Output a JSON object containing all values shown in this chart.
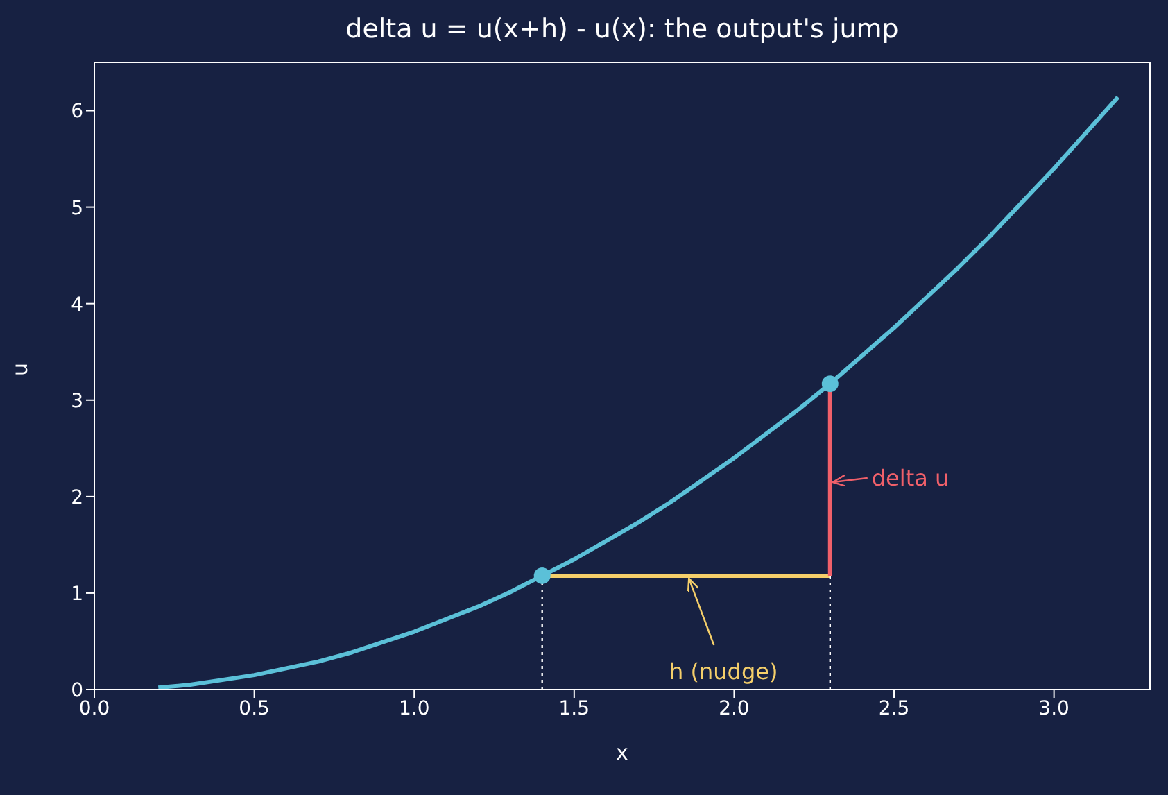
{
  "chart_data": {
    "type": "line",
    "title": "delta u = u(x+h) - u(x): the output's jump",
    "xlabel": "x",
    "ylabel": "u",
    "xlim": [
      0,
      3.3
    ],
    "xticks": [
      {
        "value": 0,
        "label": "0.0"
      },
      {
        "value": 0.5,
        "label": "0.5"
      },
      {
        "value": 1,
        "label": "1.0"
      },
      {
        "value": 1.5,
        "label": "1.5"
      },
      {
        "value": 2,
        "label": "2.0"
      },
      {
        "value": 2.5,
        "label": "2.5"
      },
      {
        "value": 3,
        "label": "3.0"
      }
    ],
    "ylim": [
      0,
      6.5
    ],
    "yticks": [
      0,
      1,
      2,
      3,
      4,
      5,
      6
    ],
    "grid": false,
    "series": [
      {
        "color": "#5bc0d8",
        "marker": "none",
        "line_style": "solid",
        "x": [
          0.2,
          0.3,
          0.4,
          0.5,
          0.6,
          0.7,
          0.8,
          0.9,
          1.0,
          1.1,
          1.2,
          1.3,
          1.4,
          1.5,
          1.6,
          1.7,
          1.8,
          1.9,
          2.0,
          2.1,
          2.2,
          2.3,
          2.4,
          2.5,
          2.6,
          2.7,
          2.8,
          2.9,
          3.0,
          3.1,
          3.2
        ],
        "values": [
          0.02,
          0.05,
          0.1,
          0.15,
          0.22,
          0.29,
          0.38,
          0.49,
          0.6,
          0.73,
          0.86,
          1.01,
          1.18,
          1.35,
          1.54,
          1.73,
          1.94,
          2.17,
          2.4,
          2.65,
          2.9,
          3.17,
          3.46,
          3.75,
          4.06,
          4.37,
          4.7,
          5.05,
          5.4,
          5.77,
          6.14
        ]
      },
      {
        "color": "#f5cf6a",
        "marker": "none",
        "line_style": "solid",
        "x": [
          1.4,
          2.3
        ],
        "values": [
          1.18,
          1.18
        ]
      },
      {
        "color": "#f0606a",
        "marker": "none",
        "line_style": "solid",
        "x": [
          2.3,
          2.3
        ],
        "values": [
          1.18,
          3.17
        ]
      },
      {
        "color": "#ffffff",
        "marker": "none",
        "line_style": "dotted",
        "x": [
          1.4,
          1.4
        ],
        "values": [
          0,
          1.18
        ]
      },
      {
        "color": "#ffffff",
        "marker": "none",
        "line_style": "dotted",
        "x": [
          2.3,
          2.3
        ],
        "values": [
          0,
          1.18
        ]
      },
      {
        "type": "scatter",
        "color": "#5bc0d8",
        "marker": "circle",
        "x": [
          1.4,
          2.3
        ],
        "values": [
          1.18,
          3.17
        ]
      }
    ],
    "annotations": [
      {
        "text": "delta u",
        "x": 2.3,
        "y": 2.15
      },
      {
        "text": "h (nudge)",
        "x": 1.85,
        "y": 1.18
      }
    ]
  }
}
